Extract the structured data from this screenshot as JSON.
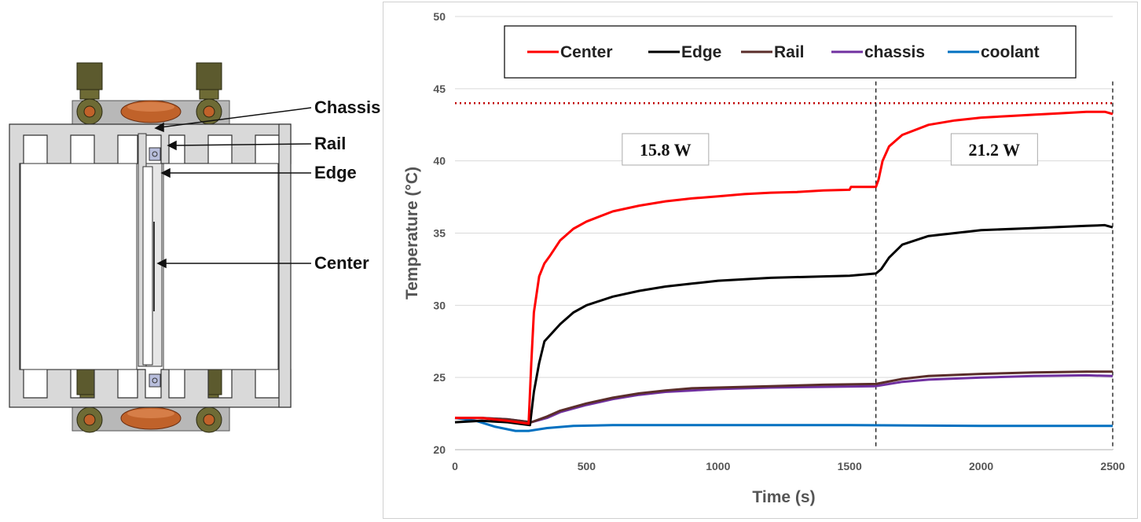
{
  "diagram": {
    "labels": {
      "chassis": "Chassis",
      "rail": "Rail",
      "edge": "Edge",
      "center": "Center"
    },
    "colors": {
      "frame": "#d9d9d9",
      "frame_stroke": "#333333",
      "fitting": "#5c5a2e",
      "copper": "#c0622a"
    }
  },
  "chart_data": {
    "type": "line",
    "xlabel": "Time (s)",
    "ylabel": "Temperature (°C)",
    "xlim": [
      0,
      2500
    ],
    "ylim": [
      20,
      50
    ],
    "xticks": [
      "0",
      "500",
      "1000",
      "1500",
      "2000",
      "2500"
    ],
    "yticks": [
      "20",
      "25",
      "30",
      "35",
      "40",
      "45",
      "50"
    ],
    "grid": "horizontal",
    "legend_position": "top",
    "series": [
      {
        "name": "Center",
        "color": "#ff0000",
        "points": [
          [
            0,
            22.2
          ],
          [
            100,
            22.2
          ],
          [
            200,
            22.0
          ],
          [
            280,
            21.8
          ],
          [
            290,
            26
          ],
          [
            300,
            29.5
          ],
          [
            320,
            32.0
          ],
          [
            340,
            32.9
          ],
          [
            360,
            33.4
          ],
          [
            400,
            34.5
          ],
          [
            450,
            35.3
          ],
          [
            500,
            35.8
          ],
          [
            600,
            36.5
          ],
          [
            700,
            36.9
          ],
          [
            800,
            37.2
          ],
          [
            900,
            37.4
          ],
          [
            1000,
            37.55
          ],
          [
            1100,
            37.7
          ],
          [
            1200,
            37.8
          ],
          [
            1300,
            37.85
          ],
          [
            1400,
            37.95
          ],
          [
            1500,
            38.0
          ],
          [
            1505,
            38.2
          ],
          [
            1600,
            38.2
          ],
          [
            1610,
            38.7
          ],
          [
            1625,
            40.0
          ],
          [
            1650,
            41.0
          ],
          [
            1700,
            41.8
          ],
          [
            1800,
            42.5
          ],
          [
            1900,
            42.8
          ],
          [
            2000,
            43.0
          ],
          [
            2100,
            43.1
          ],
          [
            2200,
            43.2
          ],
          [
            2300,
            43.3
          ],
          [
            2400,
            43.4
          ],
          [
            2470,
            43.4
          ],
          [
            2500,
            43.25
          ]
        ]
      },
      {
        "name": "Edge",
        "color": "#000000",
        "points": [
          [
            0,
            21.9
          ],
          [
            100,
            22.0
          ],
          [
            200,
            21.9
          ],
          [
            285,
            21.7
          ],
          [
            300,
            24.0
          ],
          [
            320,
            26.0
          ],
          [
            340,
            27.5
          ],
          [
            400,
            28.7
          ],
          [
            450,
            29.5
          ],
          [
            500,
            30.0
          ],
          [
            600,
            30.6
          ],
          [
            700,
            31.0
          ],
          [
            800,
            31.3
          ],
          [
            900,
            31.5
          ],
          [
            1000,
            31.7
          ],
          [
            1200,
            31.9
          ],
          [
            1400,
            32.0
          ],
          [
            1500,
            32.05
          ],
          [
            1600,
            32.2
          ],
          [
            1620,
            32.5
          ],
          [
            1650,
            33.3
          ],
          [
            1700,
            34.2
          ],
          [
            1800,
            34.8
          ],
          [
            1900,
            35.0
          ],
          [
            2000,
            35.2
          ],
          [
            2200,
            35.35
          ],
          [
            2400,
            35.5
          ],
          [
            2470,
            35.55
          ],
          [
            2500,
            35.4
          ]
        ]
      },
      {
        "name": "Rail",
        "color": "#5a2d2a",
        "points": [
          [
            0,
            22.2
          ],
          [
            100,
            22.2
          ],
          [
            200,
            22.1
          ],
          [
            290,
            21.9
          ],
          [
            350,
            22.3
          ],
          [
            400,
            22.7
          ],
          [
            500,
            23.2
          ],
          [
            600,
            23.6
          ],
          [
            700,
            23.9
          ],
          [
            800,
            24.1
          ],
          [
            900,
            24.25
          ],
          [
            1000,
            24.3
          ],
          [
            1200,
            24.4
          ],
          [
            1400,
            24.5
          ],
          [
            1600,
            24.55
          ],
          [
            1700,
            24.9
          ],
          [
            1800,
            25.1
          ],
          [
            2000,
            25.25
          ],
          [
            2200,
            25.35
          ],
          [
            2400,
            25.4
          ],
          [
            2500,
            25.4
          ]
        ]
      },
      {
        "name": "chassis",
        "color": "#7030a0",
        "points": [
          [
            0,
            22.2
          ],
          [
            100,
            22.2
          ],
          [
            200,
            22.1
          ],
          [
            290,
            21.9
          ],
          [
            350,
            22.2
          ],
          [
            400,
            22.6
          ],
          [
            500,
            23.1
          ],
          [
            600,
            23.5
          ],
          [
            700,
            23.8
          ],
          [
            800,
            24.0
          ],
          [
            900,
            24.1
          ],
          [
            1000,
            24.2
          ],
          [
            1200,
            24.3
          ],
          [
            1400,
            24.35
          ],
          [
            1600,
            24.4
          ],
          [
            1700,
            24.7
          ],
          [
            1800,
            24.85
          ],
          [
            2000,
            25.0
          ],
          [
            2200,
            25.1
          ],
          [
            2400,
            25.15
          ],
          [
            2500,
            25.1
          ]
        ]
      },
      {
        "name": "coolant",
        "color": "#0070c0",
        "points": [
          [
            0,
            22.2
          ],
          [
            80,
            22.0
          ],
          [
            150,
            21.6
          ],
          [
            230,
            21.3
          ],
          [
            280,
            21.3
          ],
          [
            350,
            21.5
          ],
          [
            450,
            21.65
          ],
          [
            600,
            21.7
          ],
          [
            800,
            21.7
          ],
          [
            1000,
            21.7
          ],
          [
            1500,
            21.7
          ],
          [
            2000,
            21.65
          ],
          [
            2500,
            21.65
          ]
        ]
      }
    ],
    "reference_lines": [
      {
        "type": "horizontal",
        "y": 44.0,
        "style": "dotted",
        "color": "#c00000"
      },
      {
        "type": "vertical",
        "x": 1600,
        "style": "dashed",
        "color": "#000000"
      },
      {
        "type": "vertical",
        "x": 2500,
        "style": "dashed",
        "color": "#000000"
      }
    ],
    "annotations": [
      {
        "text": "15.8 W",
        "x": 800,
        "y": 40.8
      },
      {
        "text": "21.2 W",
        "x": 2050,
        "y": 40.8
      }
    ]
  }
}
